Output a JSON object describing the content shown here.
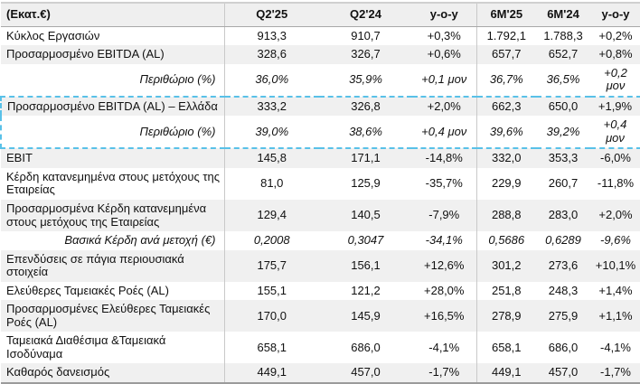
{
  "colors": {
    "highlight_dashed": "#59c1e8",
    "row_shade": "#f0f0f0",
    "header_bg": "#efefef",
    "header_rule": "#a8a8a8",
    "col_separator": "#c9c9c9",
    "table_top_border": "#d0d0d0",
    "table_bottom_border": "#9b9b9b"
  },
  "table": {
    "unit_header": "(Εκατ.€)",
    "columns": [
      "Q2'25",
      "Q2'24",
      "y-o-y",
      "6M'25",
      "6M'24",
      "y-o-y"
    ],
    "rows": [
      {
        "label": "Κύκλος Εργασιών",
        "values": [
          "913,3",
          "910,7",
          "+0,3%",
          "1.792,1",
          "1.788,3",
          "+0,2%"
        ]
      },
      {
        "label": "Προσαρμοσμένο EBITDA (AL)",
        "values": [
          "328,6",
          "326,7",
          "+0,6%",
          "657,7",
          "652,7",
          "+0,8%"
        ]
      },
      {
        "label": "Περιθώριο (%)",
        "italic": true,
        "values": [
          "36,0%",
          "35,9%",
          "+0,1 μον",
          "36,7%",
          "36,5%",
          "+0,2 μον"
        ]
      },
      {
        "label": "Προσαρμοσμένο EBITDA (AL) – Ελλάδα",
        "box": "top",
        "values": [
          "333,2",
          "326,8",
          "+2,0%",
          "662,3",
          "650,0",
          "+1,9%"
        ]
      },
      {
        "label": "Περιθώριο (%)",
        "italic": true,
        "box": "bottom",
        "values": [
          "39,0%",
          "38,6%",
          "+0,4 μον",
          "39,6%",
          "39,2%",
          "+0,4 μον"
        ]
      },
      {
        "label": "EBIT",
        "values": [
          "145,8",
          "171,1",
          "-14,8%",
          "332,0",
          "353,3",
          "-6,0%"
        ]
      },
      {
        "label": "Κέρδη κατανεμημένα στους μετόχους της Εταιρείας",
        "values": [
          "81,0",
          "125,9",
          "-35,7%",
          "229,9",
          "260,7",
          "-11,8%"
        ]
      },
      {
        "label": "Προσαρμοσμένα Κέρδη κατανεμημένα στους μετόχους της Εταιρείας",
        "values": [
          "129,4",
          "140,5",
          "-7,9%",
          "288,8",
          "283,0",
          "+2,0%"
        ]
      },
      {
        "label": "Βασικά Κέρδη ανά μετοχή (€)",
        "italic": true,
        "values": [
          "0,2008",
          "0,3047",
          "-34,1%",
          "0,5686",
          "0,6289",
          "-9,6%"
        ]
      },
      {
        "label": "Επενδύσεις σε πάγια περιουσιακά στοιχεία",
        "values": [
          "175,7",
          "156,1",
          "+12,6%",
          "301,2",
          "273,6",
          "+10,1%"
        ]
      },
      {
        "label": "Ελεύθερες Ταμειακές Ροές (AL)",
        "values": [
          "155,1",
          "121,2",
          "+28,0%",
          "251,8",
          "248,3",
          "+1,4%"
        ]
      },
      {
        "label": "Προσαρμοσμένες Ελεύθερες Ταμειακές Ροές (AL)",
        "values": [
          "170,0",
          "145,9",
          "+16,5%",
          "278,9",
          "275,9",
          "+1,1%"
        ]
      },
      {
        "label": "Ταμειακά Διαθέσιμα &Ταμειακά Ισοδύναμα",
        "values": [
          "658,1",
          "686,0",
          "-4,1%",
          "658,1",
          "686,0",
          "-4,1%"
        ]
      },
      {
        "label": "Καθαρός δανεισμός",
        "values": [
          "449,1",
          "457,0",
          "-1,7%",
          "449,1",
          "457,0",
          "-1,7%"
        ]
      }
    ]
  }
}
